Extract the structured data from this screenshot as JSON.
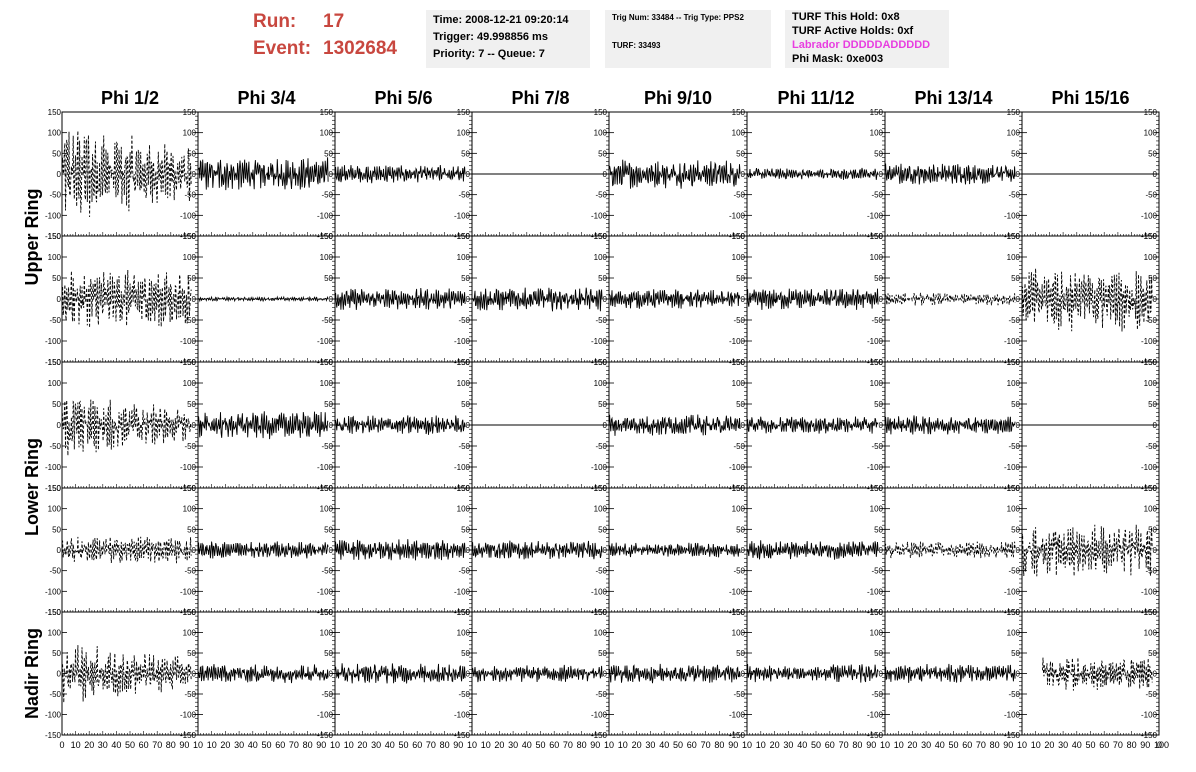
{
  "header": {
    "run_label": "Run:",
    "run_value": "17",
    "event_label": "Event:",
    "event_value": "1302684",
    "time": "Time: 2008-12-21 09:20:14",
    "trigger": "Trigger: 49.998856 ms",
    "priority": "Priority: 7 -- Queue: 7",
    "trig_num": "Trig Num: 33484 -- Trig Type: PPS2",
    "turf": "TURF: 33493",
    "turf_hold": "TURF This Hold: 0x8",
    "turf_active": "TURF Active Holds: 0xf",
    "labrador": "Labrador DDDDDADDDDD",
    "phi_mask": "Phi Mask: 0xe003"
  },
  "colors": {
    "header_red": "#c8473f",
    "labrador_magenta": "#e83ee0",
    "box_bg": "#f0f0f0",
    "trace": "#000000"
  },
  "chart_data": {
    "type": "line",
    "columns": [
      "Phi 1/2",
      "Phi 3/4",
      "Phi 5/6",
      "Phi 7/8",
      "Phi 9/10",
      "Phi 11/12",
      "Phi 13/14",
      "Phi 15/16"
    ],
    "row_groups": [
      "Upper Ring",
      "Lower Ring",
      "Nadir Ring"
    ],
    "ylim": [
      -150,
      150
    ],
    "xlim": [
      0,
      100
    ],
    "y_ticks": [
      "150",
      "100",
      "50",
      "0",
      "-50",
      "-100",
      "-150"
    ],
    "x_tick_labels": "0 10 20 30 40 50 60 70 80 90 100",
    "x_tick_labels_inner": "10 20 30 40 50 60 70 80 90 10",
    "rows": [
      [
        {
          "amp": 110,
          "style": "dashed",
          "decay": 0.5
        },
        {
          "amp": 35,
          "style": "solid"
        },
        {
          "amp": 20,
          "style": "solid"
        },
        {
          "amp": 0,
          "style": "flat"
        },
        {
          "amp": 30,
          "style": "solid"
        },
        {
          "amp": 13,
          "style": "solid"
        },
        {
          "amp": 22,
          "style": "solid"
        },
        {
          "amp": 0,
          "style": "flat"
        }
      ],
      [
        {
          "amp": 60,
          "style": "dashed"
        },
        {
          "amp": 4,
          "style": "solid"
        },
        {
          "amp": 22,
          "style": "solid"
        },
        {
          "amp": 25,
          "style": "solid"
        },
        {
          "amp": 20,
          "style": "solid"
        },
        {
          "amp": 22,
          "style": "solid"
        },
        {
          "amp": 13,
          "style": "dashed"
        },
        {
          "amp": 65,
          "style": "dashed"
        }
      ],
      [
        {
          "amp": 70,
          "style": "dashed",
          "decay": 0.6
        },
        {
          "amp": 28,
          "style": "solid"
        },
        {
          "amp": 20,
          "style": "solid"
        },
        {
          "amp": 0,
          "style": "flat"
        },
        {
          "amp": 22,
          "style": "solid"
        },
        {
          "amp": 18,
          "style": "solid"
        },
        {
          "amp": 20,
          "style": "solid"
        },
        {
          "amp": 0,
          "style": "flat"
        }
      ],
      [
        {
          "amp": 28,
          "style": "dashed"
        },
        {
          "amp": 18,
          "style": "solid"
        },
        {
          "amp": 22,
          "style": "solid"
        },
        {
          "amp": 20,
          "style": "solid"
        },
        {
          "amp": 15,
          "style": "solid"
        },
        {
          "amp": 20,
          "style": "solid"
        },
        {
          "amp": 18,
          "style": "dashed"
        },
        {
          "amp": 55,
          "style": "dashed"
        }
      ],
      [
        {
          "amp": 65,
          "style": "dashed",
          "decay": 0.5
        },
        {
          "amp": 20,
          "style": "solid"
        },
        {
          "amp": 22,
          "style": "solid"
        },
        {
          "amp": 18,
          "style": "solid"
        },
        {
          "amp": 20,
          "style": "solid"
        },
        {
          "amp": 20,
          "style": "solid"
        },
        {
          "amp": 20,
          "style": "solid"
        },
        {
          "amp": 35,
          "style": "dashed",
          "start": 0.15,
          "end": 0.95
        }
      ]
    ]
  }
}
